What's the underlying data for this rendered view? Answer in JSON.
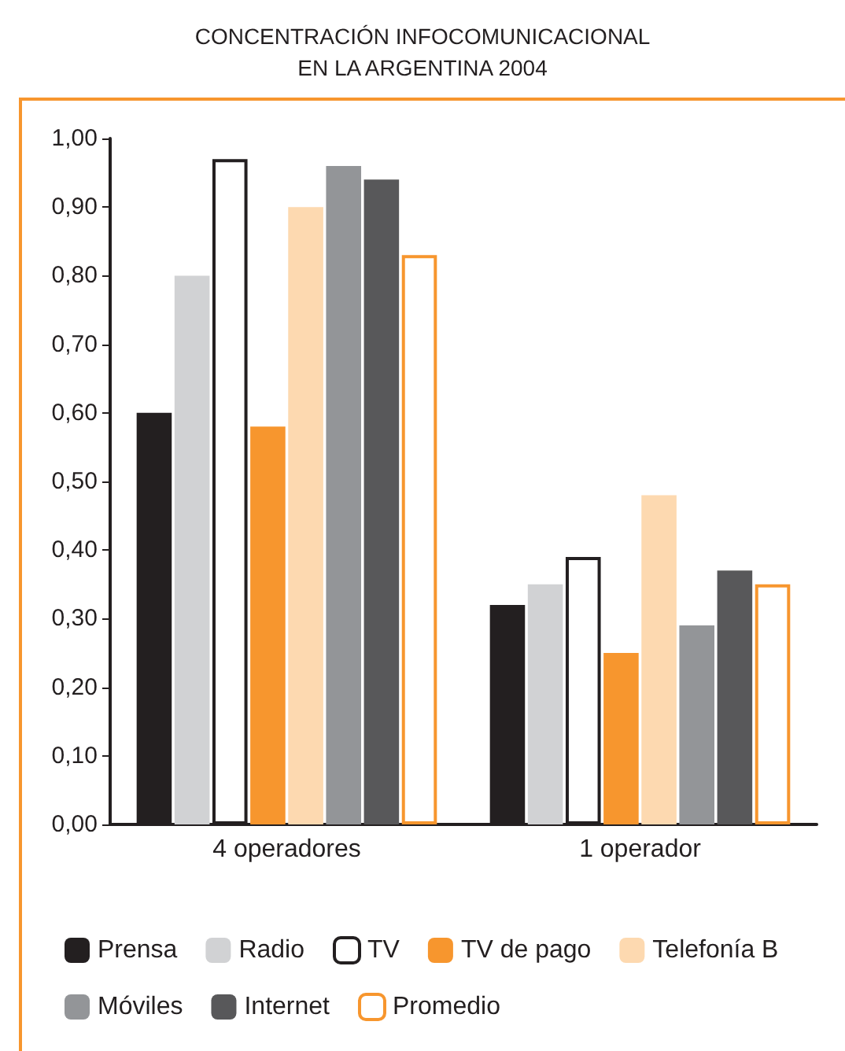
{
  "chart_data": {
    "type": "bar",
    "title": "CONCENTRACIÓN INFOCOMUNICACIONAL\nEN LA ARGENTINA 2004",
    "categories": [
      "4 operadores",
      "1 operador"
    ],
    "series": [
      {
        "name": "Prensa",
        "color": "#231f20",
        "values": [
          0.6,
          0.32
        ]
      },
      {
        "name": "Radio",
        "color": "#d1d2d4",
        "values": [
          0.8,
          0.35
        ]
      },
      {
        "name": "TV",
        "color": "#ffffff",
        "values": [
          0.97,
          0.39
        ]
      },
      {
        "name": "TV de pago",
        "color": "#f7962e",
        "values": [
          0.58,
          0.25
        ]
      },
      {
        "name": "Telefonía B",
        "color": "#fdd9b0",
        "values": [
          0.9,
          0.48
        ]
      },
      {
        "name": "Móviles",
        "color": "#939598",
        "values": [
          0.96,
          0.29
        ]
      },
      {
        "name": "Internet",
        "color": "#58585a",
        "values": [
          0.94,
          0.37
        ]
      },
      {
        "name": "Promedio",
        "color": "#ffffff",
        "values": [
          0.83,
          0.35
        ]
      }
    ],
    "ylim": [
      0,
      1
    ],
    "yticks": [
      {
        "value": 0,
        "label": "0,00"
      },
      {
        "value": 0.1,
        "label": "0,10"
      },
      {
        "value": 0.2,
        "label": "0,20"
      },
      {
        "value": 0.3,
        "label": "0,30"
      },
      {
        "value": 0.4,
        "label": "0,40"
      },
      {
        "value": 0.5,
        "label": "0,50"
      },
      {
        "value": 0.6,
        "label": "0,60"
      },
      {
        "value": 0.7,
        "label": "0,70"
      },
      {
        "value": 0.8,
        "label": "0,80"
      },
      {
        "value": 0.9,
        "label": "0,90"
      },
      {
        "value": 1,
        "label": "1,00"
      }
    ],
    "grid": false,
    "legend": "bottom"
  }
}
